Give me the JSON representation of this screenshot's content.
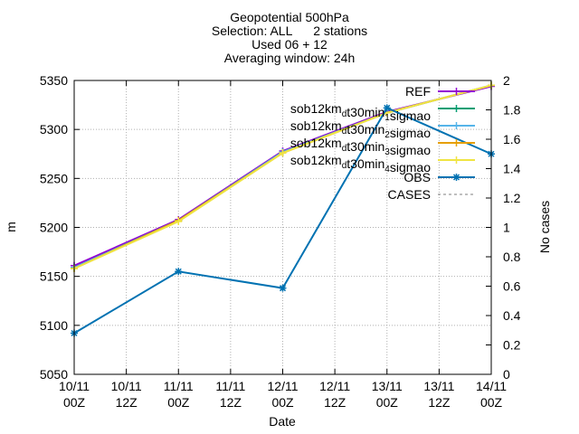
{
  "chart_data": {
    "type": "line",
    "title_lines": [
      "Geopotential 500hPa",
      "Selection: ALL      2 stations",
      "Used 06 + 12",
      "Averaging window: 24h"
    ],
    "xlabel": "Date",
    "ylabel": "m",
    "y2label": "No cases",
    "x_ticks": [
      {
        "line1": "10/11",
        "line2": "00Z"
      },
      {
        "line1": "10/11",
        "line2": "12Z"
      },
      {
        "line1": "11/11",
        "line2": "00Z"
      },
      {
        "line1": "11/11",
        "line2": "12Z"
      },
      {
        "line1": "12/11",
        "line2": "00Z"
      },
      {
        "line1": "12/11",
        "line2": "12Z"
      },
      {
        "line1": "13/11",
        "line2": "00Z"
      },
      {
        "line1": "13/11",
        "line2": "12Z"
      },
      {
        "line1": "14/11",
        "line2": "00Z"
      }
    ],
    "x_hours": [
      0,
      24,
      48,
      72,
      96
    ],
    "xlim_hours": [
      0,
      96
    ],
    "ylim": [
      5050,
      5350
    ],
    "y_ticks": [
      5050,
      5100,
      5150,
      5200,
      5250,
      5300,
      5350
    ],
    "y2lim": [
      0,
      2
    ],
    "y2_ticks": [
      "0",
      "0.2",
      "0.4",
      "0.6",
      "0.8",
      "1",
      "1.2",
      "1.4",
      "1.6",
      "1.8",
      "2"
    ],
    "y2_values": [
      0,
      0.2,
      0.4,
      0.6,
      0.8,
      1,
      1.2,
      1.4,
      1.6,
      1.8,
      2
    ],
    "grid": true,
    "legend_position": "top-right",
    "series": [
      {
        "name": "REF",
        "name_parts": [
          {
            "t": "REF"
          }
        ],
        "color": "#9400d3",
        "marker": "plus",
        "dashed": false,
        "values": [
          5161,
          5208,
          5278,
          5318,
          5344
        ]
      },
      {
        "name": "sob12km_dt30min_1sigmao",
        "name_parts": [
          {
            "t": "sob12km"
          },
          {
            "t": "d",
            "sub": true
          },
          {
            "t": "t30min"
          },
          {
            "t": "1",
            "sub": true
          },
          {
            "t": "sigmao"
          }
        ],
        "color": "#009e73",
        "marker": "plus",
        "dashed": false,
        "values": [
          5159,
          5207,
          5277,
          5317,
          5345
        ]
      },
      {
        "name": "sob12km_dt30min_2sigmao",
        "name_parts": [
          {
            "t": "sob12km"
          },
          {
            "t": "d",
            "sub": true
          },
          {
            "t": "t30min"
          },
          {
            "t": "2",
            "sub": true
          },
          {
            "t": "sigmao"
          }
        ],
        "color": "#56b4e9",
        "marker": "plus",
        "dashed": false,
        "values": [
          5159,
          5207,
          5277,
          5317,
          5345
        ]
      },
      {
        "name": "sob12km_dt30min_3sigmao",
        "name_parts": [
          {
            "t": "sob12km"
          },
          {
            "t": "d",
            "sub": true
          },
          {
            "t": "t30min"
          },
          {
            "t": "3",
            "sub": true
          },
          {
            "t": "sigmao"
          }
        ],
        "color": "#e69f00",
        "marker": "plus",
        "dashed": false,
        "values": [
          5158,
          5207,
          5276,
          5317,
          5345
        ]
      },
      {
        "name": "sob12km_dt30min_4sigmao",
        "name_parts": [
          {
            "t": "sob12km"
          },
          {
            "t": "d",
            "sub": true
          },
          {
            "t": "t30min"
          },
          {
            "t": "4",
            "sub": true
          },
          {
            "t": "sigmao"
          }
        ],
        "color": "#f0e442",
        "marker": "plus",
        "dashed": false,
        "values": [
          5158,
          5206,
          5276,
          5317,
          5345
        ]
      },
      {
        "name": "OBS",
        "name_parts": [
          {
            "t": "OBS"
          }
        ],
        "color": "#0072b2",
        "marker": "star",
        "dashed": false,
        "values": [
          5092,
          5155,
          5138,
          5322,
          5275
        ]
      },
      {
        "name": "CASES",
        "name_parts": [
          {
            "t": "CASES"
          }
        ],
        "color": "#7f7f7f",
        "marker": "none",
        "dashed": true,
        "values": []
      }
    ]
  }
}
